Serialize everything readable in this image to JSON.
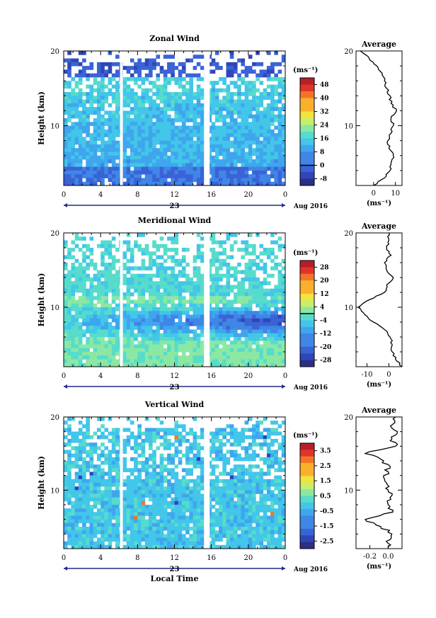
{
  "chart_data": [
    {
      "type": "heatmap",
      "title": "Zonal Wind",
      "ylabel": "Height (km)",
      "y_ticks": [
        "10",
        "20"
      ],
      "ylim": [
        2,
        20
      ],
      "x_ticks": [
        "0",
        "4",
        "8",
        "12",
        "16",
        "20",
        "0"
      ],
      "xlim": [
        0,
        24
      ],
      "day_label": "23",
      "date_label": "Aug 2016",
      "colorbar": {
        "unit": "(ms⁻¹)",
        "ticks": [
          "48",
          "40",
          "32",
          "24",
          "16",
          "8",
          "0",
          "-8"
        ],
        "range": [
          -12,
          52
        ],
        "zero_contour": 0
      },
      "profile": {
        "title": "Average",
        "y_ticks": [
          "10",
          "20"
        ],
        "x_ticks": [
          "0",
          "10"
        ],
        "xlabel": "(ms⁻¹)",
        "xlim": [
          -8,
          13
        ],
        "height": [
          2,
          3,
          4,
          5,
          6,
          7,
          8,
          9,
          10,
          11,
          12,
          13,
          14,
          15,
          16,
          17,
          18,
          19,
          20
        ],
        "value": [
          0,
          5,
          7.5,
          8,
          9,
          7,
          6.5,
          8,
          9,
          8,
          10.5,
          8,
          7.5,
          6,
          5,
          4,
          1.5,
          -2,
          -6
        ]
      }
    },
    {
      "type": "heatmap",
      "title": "Meridional Wind",
      "ylabel": "Height (km)",
      "y_ticks": [
        "10",
        "20"
      ],
      "ylim": [
        2,
        20
      ],
      "x_ticks": [
        "0",
        "4",
        "8",
        "12",
        "16",
        "20",
        "0"
      ],
      "xlim": [
        0,
        24
      ],
      "day_label": "23",
      "date_label": "Aug 2016",
      "colorbar": {
        "unit": "(ms⁻¹)",
        "ticks": [
          "28",
          "20",
          "12",
          "4",
          "-4",
          "-12",
          "-20",
          "-28"
        ],
        "range": [
          -32,
          32
        ],
        "zero_contour": 0
      },
      "profile": {
        "title": "Average",
        "y_ticks": [
          "10",
          "20"
        ],
        "x_ticks": [
          "-10",
          "0"
        ],
        "xlabel": "(ms⁻¹)",
        "xlim": [
          -15,
          6
        ],
        "height": [
          2,
          3,
          4,
          5,
          6,
          7,
          8,
          9,
          10,
          11,
          12,
          13,
          14,
          15,
          16,
          17,
          18,
          19,
          20
        ],
        "value": [
          6,
          3,
          1.5,
          1.5,
          0.5,
          -2,
          -7,
          -11,
          -14,
          -9,
          -2,
          -1,
          2,
          -1,
          -2,
          1,
          -1,
          0,
          0
        ]
      }
    },
    {
      "type": "heatmap",
      "title": "Vertical Wind",
      "ylabel": "Height (km)",
      "y_ticks": [
        "10",
        "20"
      ],
      "ylim": [
        2,
        20
      ],
      "x_ticks": [
        "0",
        "4",
        "8",
        "12",
        "16",
        "20",
        "0"
      ],
      "xlim": [
        0,
        24
      ],
      "day_label": "23",
      "date_label": "Aug 2016",
      "xlabel": "Local Time",
      "colorbar": {
        "unit": "(ms⁻¹)",
        "ticks": [
          "3.5",
          "2.5",
          "1.5",
          "0.5",
          "-0.5",
          "-1.5",
          "-2.5"
        ],
        "range": [
          -3,
          4
        ]
      },
      "profile": {
        "title": "Average",
        "y_ticks": [
          "10",
          "20"
        ],
        "x_ticks": [
          "-0.2",
          "0.0"
        ],
        "xlabel": "(ms⁻¹)",
        "xlim": [
          -0.35,
          0.15
        ],
        "height": [
          2,
          3,
          4,
          5,
          6,
          7,
          8,
          9,
          10,
          11,
          12,
          13,
          14,
          15,
          16,
          17,
          18,
          19,
          20
        ],
        "value": [
          0.0,
          -0.02,
          0.04,
          -0.08,
          -0.25,
          0.05,
          0.0,
          0.02,
          0.0,
          -0.02,
          -0.05,
          0.02,
          -0.05,
          -0.25,
          0.08,
          0.04,
          0.1,
          0.05,
          0.08
        ]
      }
    }
  ]
}
